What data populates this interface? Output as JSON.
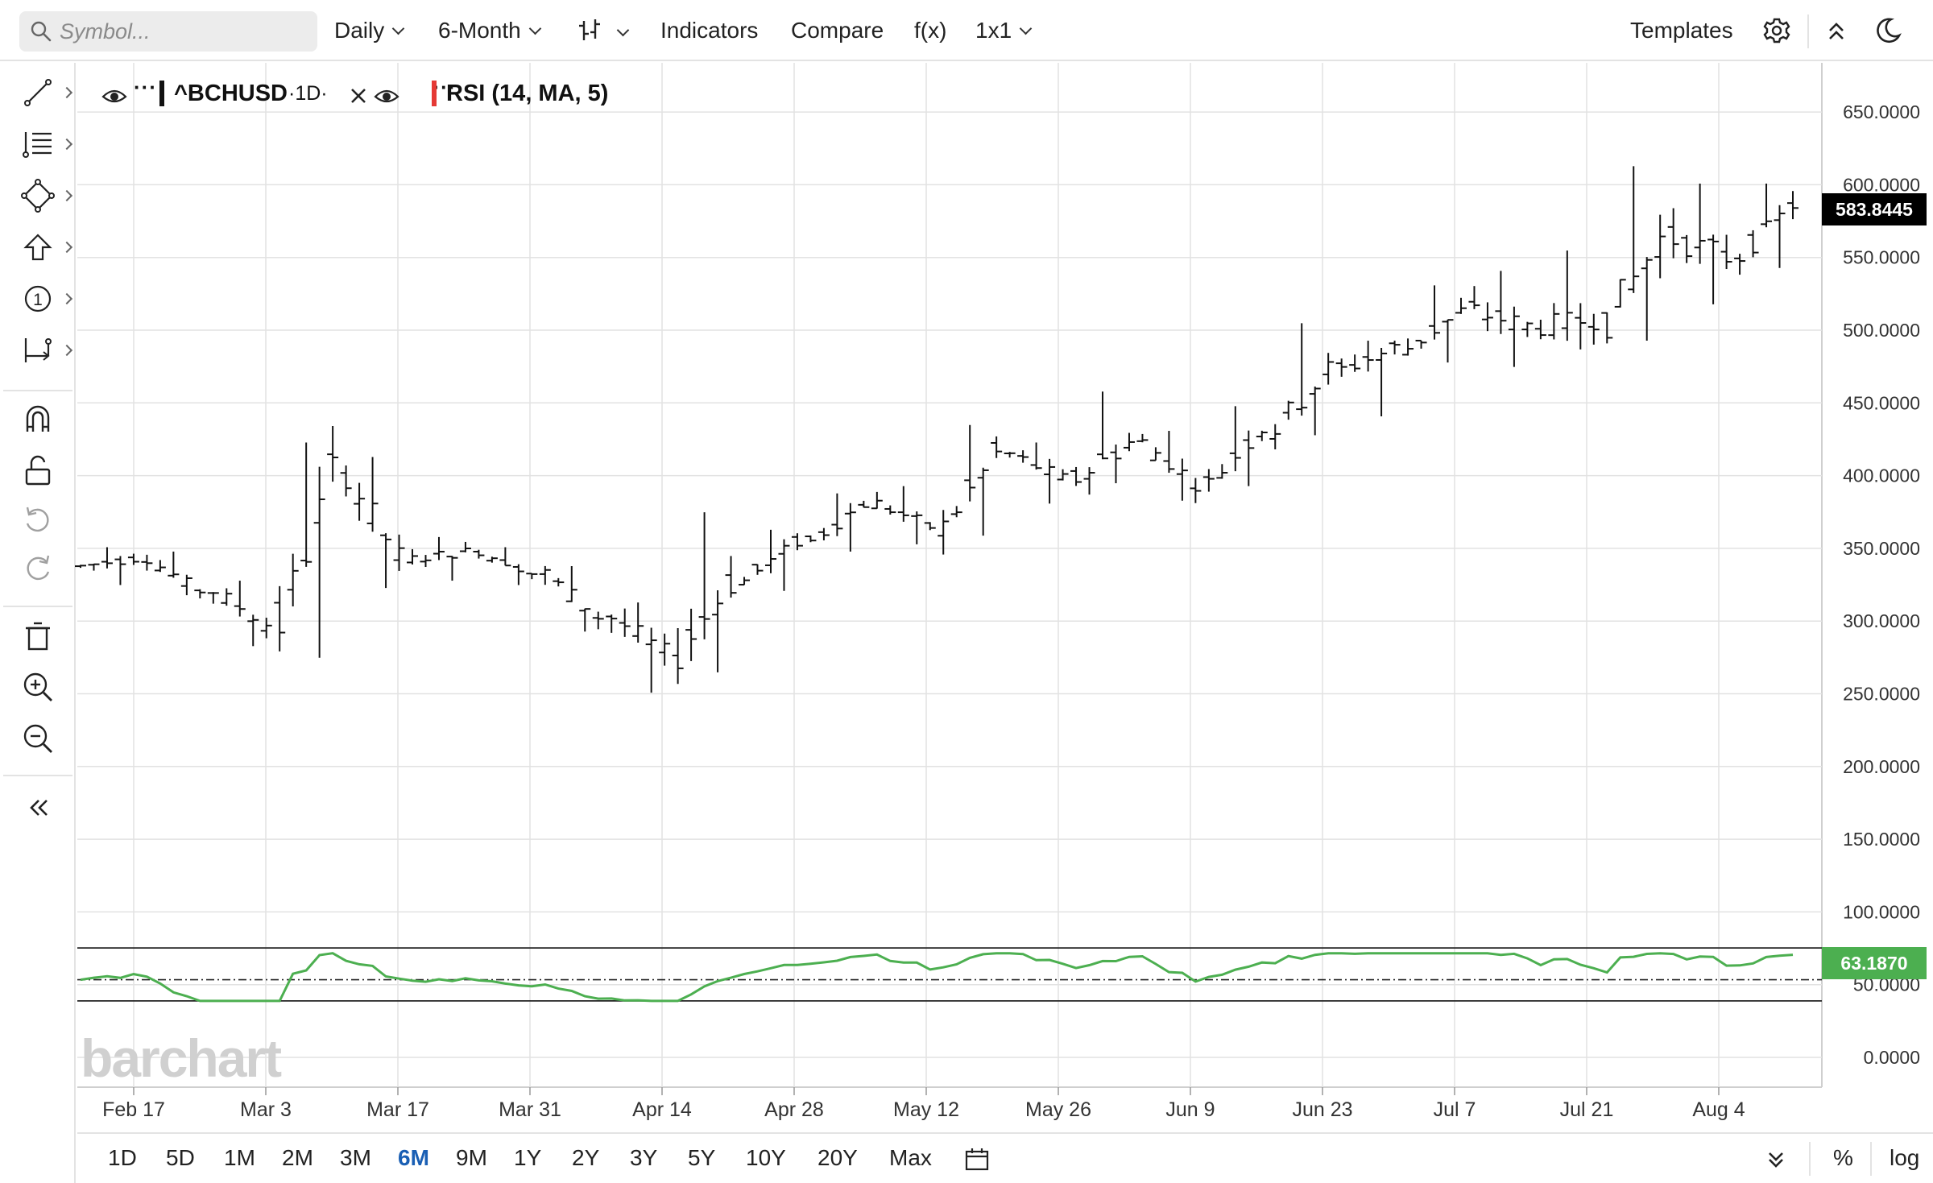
{
  "toolbar": {
    "search_placeholder": "Symbol...",
    "interval": "Daily",
    "period": "6-Month",
    "indicators": "Indicators",
    "compare": "Compare",
    "fx": "f(x)",
    "layout": "1x1",
    "templates": "Templates"
  },
  "legend": {
    "symbol": "^BCHUSD",
    "symbol_interval": "·1D·",
    "study": "RSI (14, MA, 5)",
    "dots": "···",
    "symbol_color": "#111111",
    "study_color": "#e53935"
  },
  "price_axis": {
    "ticks": [
      "650.0000",
      "600.0000",
      "550.0000",
      "500.0000",
      "450.0000",
      "400.0000",
      "350.0000",
      "300.0000",
      "250.0000",
      "200.0000",
      "150.0000",
      "100.0000",
      "50.0000",
      "0.0000"
    ],
    "last_price": "583.8445",
    "rsi_value": "63.1870",
    "last_price_color": "#000000",
    "rsi_color": "#4caf50"
  },
  "time_axis": {
    "ticks": [
      "Feb 17",
      "Mar 3",
      "Mar 17",
      "Mar 31",
      "Apr 14",
      "Apr 28",
      "May 12",
      "May 26",
      "Jun 9",
      "Jun 23",
      "Jul 7",
      "Jul 21",
      "Aug 4"
    ]
  },
  "chart_data": {
    "type": "ohlc",
    "symbol": "^BCHUSD",
    "interval": "1D",
    "ylim": [
      0,
      680
    ],
    "bars_weekly_approx": [
      {
        "date": "Feb 14",
        "open": 335,
        "high": 348,
        "low": 322,
        "close": 340
      },
      {
        "date": "Feb 21",
        "open": 340,
        "high": 345,
        "low": 315,
        "close": 318
      },
      {
        "date": "Feb 28",
        "open": 318,
        "high": 325,
        "low": 280,
        "close": 295
      },
      {
        "date": "Mar 7",
        "open": 295,
        "high": 420,
        "low": 272,
        "close": 398
      },
      {
        "date": "Mar 14",
        "open": 398,
        "high": 410,
        "low": 320,
        "close": 340
      },
      {
        "date": "Mar 21",
        "open": 340,
        "high": 355,
        "low": 325,
        "close": 345
      },
      {
        "date": "Mar 28",
        "open": 345,
        "high": 348,
        "low": 322,
        "close": 330
      },
      {
        "date": "Apr 4",
        "open": 330,
        "high": 335,
        "low": 290,
        "close": 300
      },
      {
        "date": "Apr 11",
        "open": 300,
        "high": 310,
        "low": 248,
        "close": 275
      },
      {
        "date": "Apr 18",
        "open": 275,
        "high": 372,
        "low": 262,
        "close": 325
      },
      {
        "date": "Apr 25",
        "open": 325,
        "high": 360,
        "low": 318,
        "close": 352
      },
      {
        "date": "May 2",
        "open": 352,
        "high": 385,
        "low": 345,
        "close": 378
      },
      {
        "date": "May 9",
        "open": 378,
        "high": 390,
        "low": 350,
        "close": 362
      },
      {
        "date": "May 16",
        "open": 362,
        "high": 432,
        "low": 356,
        "close": 412
      },
      {
        "date": "May 23",
        "open": 412,
        "high": 420,
        "low": 378,
        "close": 395
      },
      {
        "date": "May 30",
        "open": 395,
        "high": 455,
        "low": 392,
        "close": 420
      },
      {
        "date": "Jun 6",
        "open": 420,
        "high": 428,
        "low": 380,
        "close": 392
      },
      {
        "date": "Jun 13",
        "open": 392,
        "high": 445,
        "low": 390,
        "close": 430
      },
      {
        "date": "Jun 20",
        "open": 430,
        "high": 502,
        "low": 425,
        "close": 470
      },
      {
        "date": "Jun 27",
        "open": 470,
        "high": 490,
        "low": 438,
        "close": 485
      },
      {
        "date": "Jul 4",
        "open": 485,
        "high": 528,
        "low": 475,
        "close": 510
      },
      {
        "date": "Jul 11",
        "open": 510,
        "high": 538,
        "low": 472,
        "close": 500
      },
      {
        "date": "Jul 18",
        "open": 500,
        "high": 552,
        "low": 484,
        "close": 505
      },
      {
        "date": "Jul 25",
        "open": 505,
        "high": 610,
        "low": 490,
        "close": 560
      },
      {
        "date": "Aug 1",
        "open": 560,
        "high": 598,
        "low": 515,
        "close": 548
      },
      {
        "date": "Aug 8",
        "open": 548,
        "high": 598,
        "low": 540,
        "close": 583.8445
      }
    ],
    "rsi": {
      "name": "RSI (14, MA, 5)",
      "color": "#4caf50",
      "last": 63.187,
      "upper_band": 80,
      "mid_band": 50,
      "lower_band": 30
    }
  },
  "range_buttons": [
    "1D",
    "5D",
    "1M",
    "2M",
    "3M",
    "6M",
    "9M",
    "1Y",
    "2Y",
    "3Y",
    "5Y",
    "10Y",
    "20Y",
    "Max"
  ],
  "range_active": "6M",
  "bottom_right": {
    "percent": "%",
    "log": "log"
  }
}
